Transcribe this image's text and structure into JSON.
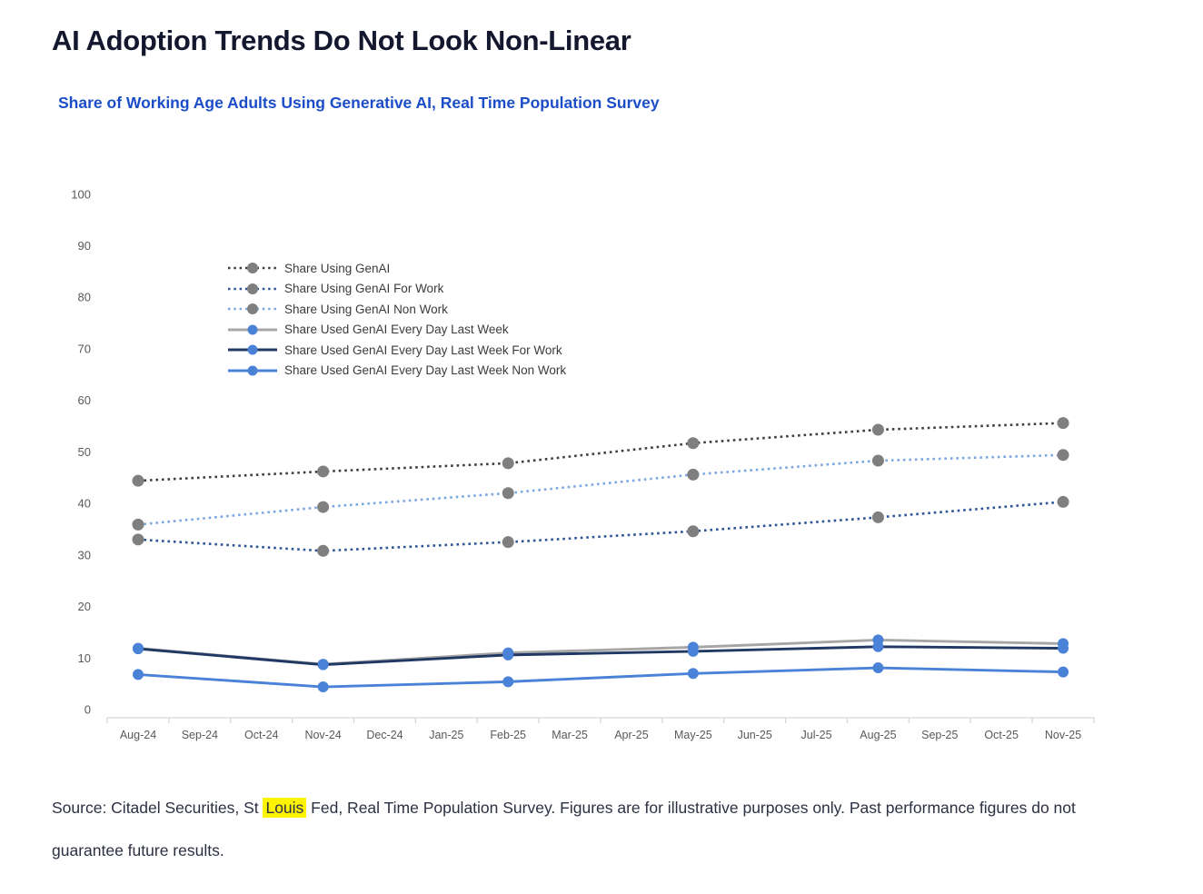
{
  "header": {
    "title": "AI Adoption Trends Do Not Look Non-Linear",
    "subtitle": "Share of Working Age Adults Using Generative AI, Real Time Population Survey"
  },
  "chart_data": {
    "type": "line",
    "title": "Share of Working Age Adults Using Generative AI, Real Time Population Survey",
    "xlabel": "",
    "ylabel": "",
    "ylim": [
      0,
      100
    ],
    "y_ticks": [
      0,
      10,
      20,
      30,
      40,
      50,
      60,
      70,
      80,
      90,
      100
    ],
    "grid": false,
    "legend_position": "inside-top-left",
    "x_tick_labels": [
      "Aug-24",
      "Sep-24",
      "Oct-24",
      "Nov-24",
      "Dec-24",
      "Jan-25",
      "Feb-25",
      "Mar-25",
      "Apr-25",
      "May-25",
      "Jun-25",
      "Jul-25",
      "Aug-25",
      "Sep-25",
      "Oct-25",
      "Nov-25"
    ],
    "data_months": [
      "Aug-24",
      "Nov-24",
      "Feb-25",
      "May-25",
      "Aug-25",
      "Nov-25"
    ],
    "data_x_indices": [
      0,
      3,
      6,
      9,
      12,
      15
    ],
    "series": [
      {
        "name": "Share Using GenAI",
        "style": "dotted",
        "line_color": "#3f3f3f",
        "marker_color": "#7f7f7f",
        "values": [
          44.4,
          46.2,
          47.8,
          51.7,
          54.3,
          55.6
        ]
      },
      {
        "name": "Share Using GenAI For Work",
        "style": "dotted",
        "line_color": "#2e5596",
        "marker_color": "#7f7f7f",
        "values": [
          33.0,
          30.8,
          32.5,
          34.6,
          37.3,
          40.3
        ]
      },
      {
        "name": "Share Using GenAI Non Work",
        "style": "dotted",
        "line_color": "#7da7e0",
        "marker_color": "#7f7f7f",
        "values": [
          35.9,
          39.3,
          42.0,
          45.6,
          48.3,
          49.4
        ]
      },
      {
        "name": "Share Used GenAI Every Day Last Week",
        "style": "solid",
        "line_color": "#a6a6a6",
        "marker_color": "#4a82d8",
        "values": [
          11.9,
          8.8,
          11.0,
          12.1,
          13.5,
          12.8
        ]
      },
      {
        "name": "Share Used GenAI Every Day Last Week For Work",
        "style": "solid",
        "line_color": "#1f3864",
        "marker_color": "#4a82d8",
        "values": [
          11.8,
          8.7,
          10.6,
          11.3,
          12.2,
          11.9
        ]
      },
      {
        "name": "Share Used GenAI Every Day Last Week Non Work",
        "style": "solid",
        "line_color": "#4a82d8",
        "marker_color": "#4a82d8",
        "values": [
          6.8,
          4.4,
          5.4,
          7.0,
          8.1,
          7.3
        ]
      }
    ],
    "axis_label_color": "#595959",
    "axis_line_color": "#d6d6d6"
  },
  "footer": {
    "source_prefix": "Source: Citadel Securities, St ",
    "source_highlight": "Louis",
    "source_suffix": " Fed, Real Time Population Survey. Figures are for illustrative purposes only. Past performance figures do not guarantee future results."
  },
  "colors": {
    "title": "#14182e",
    "subtitle": "#1c4dc9",
    "source_text": "#2c3043",
    "highlight_bg": "#fcf403",
    "legend_text": "#3b3b3b"
  }
}
